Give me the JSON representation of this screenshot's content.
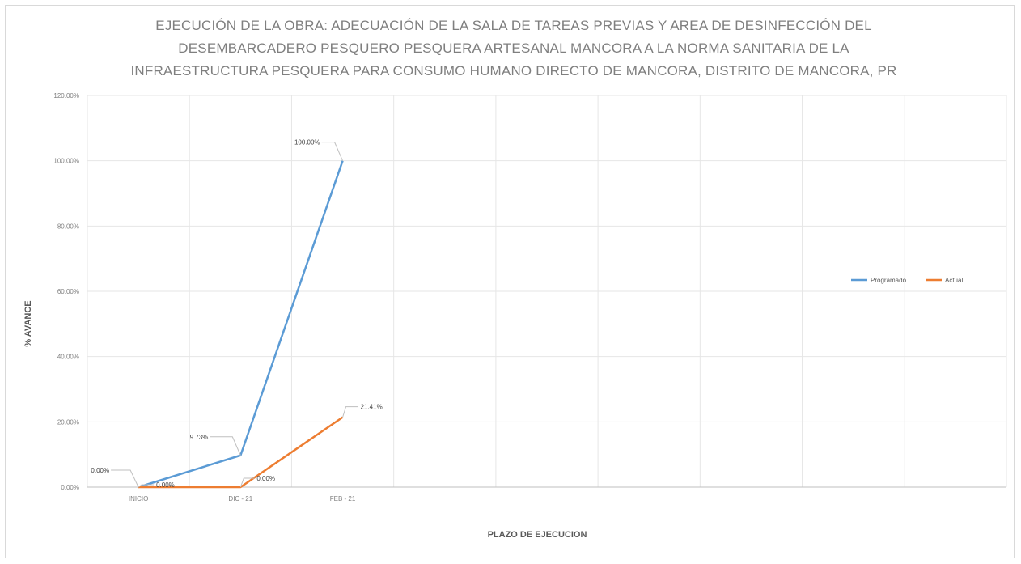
{
  "chart_data": {
    "type": "line",
    "title_lines": [
      "EJECUCIÓN DE LA OBRA: ADECUACIÓN DE LA SALA DE TAREAS PREVIAS Y AREA DE DESINFECCIÓN DEL",
      "DESEMBARCADERO PESQUERO PESQUERA ARTESANAL MANCORA A LA NORMA SANITARIA DE LA",
      "INFRAESTRUCTURA PESQUERA PARA CONSUMO HUMANO DIRECTO DE MANCORA, DISTRITO DE MANCORA, PR"
    ],
    "xlabel": "PLAZO DE EJECUCION",
    "ylabel": "% AVANCE",
    "categories": [
      "INICIO",
      "DIC - 21",
      "FEB - 21"
    ],
    "slot_count": 9,
    "ylim": [
      0,
      120
    ],
    "yticks": [
      0,
      20,
      40,
      60,
      80,
      100,
      120
    ],
    "ytick_labels": [
      "0.00%",
      "20.00%",
      "40.00%",
      "60.00%",
      "80.00%",
      "100.00%",
      "120.00%"
    ],
    "grid": true,
    "legend_position": "right",
    "series": [
      {
        "name": "Programado",
        "color": "#5b9bd5",
        "values": [
          0.0,
          9.73,
          100.0
        ],
        "labels": [
          "0.00%",
          "9.73%",
          "100.00%"
        ]
      },
      {
        "name": "Actual",
        "color": "#ed7d31",
        "values": [
          0.0,
          0.0,
          21.41
        ],
        "labels": [
          "0.00%",
          "0.00%",
          "21.41%"
        ]
      }
    ]
  }
}
